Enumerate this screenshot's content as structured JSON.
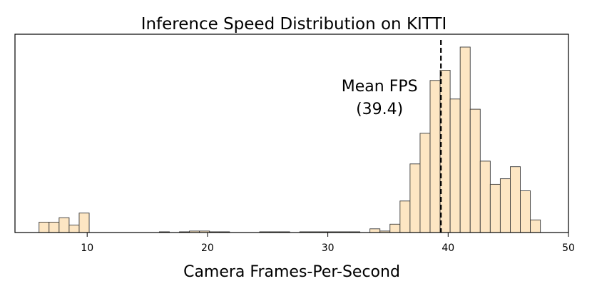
{
  "chart_data": {
    "type": "bar",
    "title": "Inference Speed Distribution on KITTI",
    "xlabel": "Camera Frames-Per-Second",
    "ylabel": "",
    "xlim": [
      4,
      50
    ],
    "ylim": [
      0,
      1.0
    ],
    "xticks": [
      10,
      20,
      30,
      40,
      50
    ],
    "bin_width": 0.8333,
    "bins": [
      {
        "x0": 6.0,
        "value": 0.056
      },
      {
        "x0": 6.833,
        "value": 0.056
      },
      {
        "x0": 7.667,
        "value": 0.08
      },
      {
        "x0": 8.5,
        "value": 0.04
      },
      {
        "x0": 9.333,
        "value": 0.105
      },
      {
        "x0": 16.0,
        "value": 0.004
      },
      {
        "x0": 17.667,
        "value": 0.004
      },
      {
        "x0": 18.5,
        "value": 0.008
      },
      {
        "x0": 19.333,
        "value": 0.008
      },
      {
        "x0": 20.167,
        "value": 0.004
      },
      {
        "x0": 21.0,
        "value": 0.004
      },
      {
        "x0": 24.333,
        "value": 0.004
      },
      {
        "x0": 25.167,
        "value": 0.004
      },
      {
        "x0": 26.0,
        "value": 0.004
      },
      {
        "x0": 27.667,
        "value": 0.004
      },
      {
        "x0": 28.5,
        "value": 0.004
      },
      {
        "x0": 29.333,
        "value": 0.004
      },
      {
        "x0": 30.167,
        "value": 0.004
      },
      {
        "x0": 31.0,
        "value": 0.004
      },
      {
        "x0": 31.833,
        "value": 0.004
      },
      {
        "x0": 33.5,
        "value": 0.02
      },
      {
        "x0": 34.333,
        "value": 0.008
      },
      {
        "x0": 35.167,
        "value": 0.045
      },
      {
        "x0": 36.0,
        "value": 0.17
      },
      {
        "x0": 36.833,
        "value": 0.37
      },
      {
        "x0": 37.667,
        "value": 0.535
      },
      {
        "x0": 38.5,
        "value": 0.82
      },
      {
        "x0": 39.333,
        "value": 0.875
      },
      {
        "x0": 40.167,
        "value": 0.72
      },
      {
        "x0": 41.0,
        "value": 1.0
      },
      {
        "x0": 41.833,
        "value": 0.665
      },
      {
        "x0": 42.667,
        "value": 0.385
      },
      {
        "x0": 43.5,
        "value": 0.26
      },
      {
        "x0": 44.333,
        "value": 0.29
      },
      {
        "x0": 45.167,
        "value": 0.355
      },
      {
        "x0": 46.0,
        "value": 0.225
      },
      {
        "x0": 46.833,
        "value": 0.068
      }
    ],
    "mean": 39.4,
    "annotation": [
      "Mean FPS",
      "(39.4)"
    ],
    "grid": false,
    "bar_color": "#fde6c3",
    "edge_color": "#3a3a3a"
  }
}
